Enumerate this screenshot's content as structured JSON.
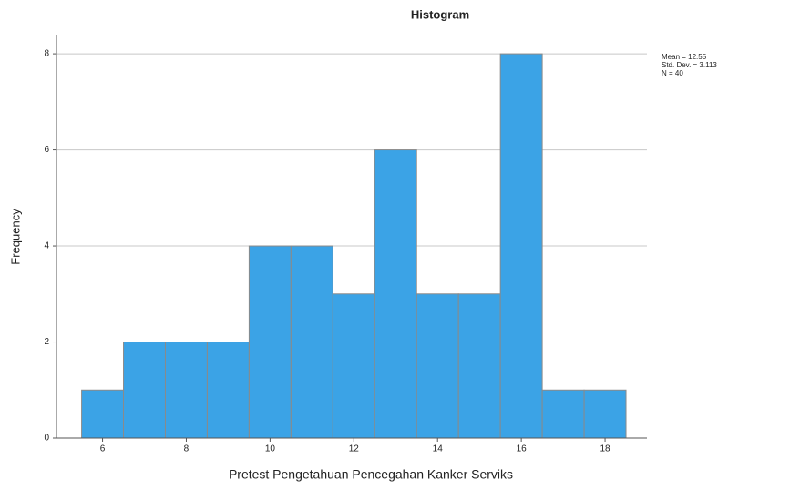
{
  "chart_data": {
    "type": "histogram",
    "title": "Histogram",
    "x_label": "Pretest Pengetahuan Pencegahan Kanker Serviks",
    "y_label": "Frequency",
    "bins": [
      5.5,
      6.5,
      7.5,
      8.5,
      9.5,
      10.5,
      11.5,
      12.5,
      13.5,
      14.5,
      15.5,
      16.5,
      17.5,
      18.5
    ],
    "values": [
      1,
      2,
      2,
      2,
      4,
      4,
      3,
      6,
      3,
      3,
      8,
      1,
      1
    ],
    "color": "#3ba3e6",
    "xlim": [
      4.9,
      19.0
    ],
    "xticks": [
      6,
      8,
      10,
      12,
      14,
      16,
      18
    ],
    "ylim": [
      0,
      8.4
    ],
    "yticks": [
      0,
      2,
      4,
      6,
      8
    ],
    "grid": true,
    "annotations": [
      "Mean = 12.55",
      "Std. Dev. = 3.113",
      "N = 40"
    ]
  }
}
